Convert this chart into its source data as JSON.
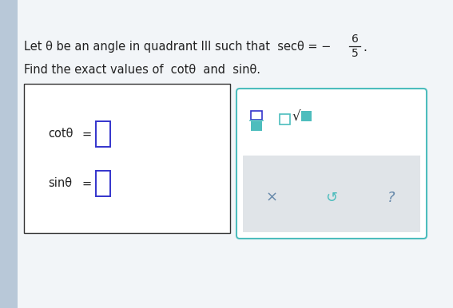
{
  "bg_color": "#d6e0ea",
  "left_bar_color": "#b8c8d8",
  "main_bg": "#f2f5f8",
  "line1_text": "Let θ be an angle in quadrant III such that  secθ = −",
  "fraction_num": "6",
  "fraction_den": "5",
  "line2_text": "Find the exact values of  cotθ  and  sinθ.",
  "cot_label": "cotθ",
  "sin_label": "sinθ",
  "equals": "=",
  "input_box_color": "#3333cc",
  "input_box_fill": "white",
  "answer_panel_bg": "white",
  "answer_panel_border": "#4dbdbd",
  "frac_icon_top_color": "#3333cc",
  "frac_icon_bot_color": "#4dbdbd",
  "sqrt_box_color": "#4dbdbd",
  "button_area_bg": "#e0e4e8",
  "x_button_color": "#6688aa",
  "undo_button_color": "#4dbdbd",
  "help_button_color": "#6688aa",
  "text_color": "#222222",
  "panel_border_color": "#333333"
}
